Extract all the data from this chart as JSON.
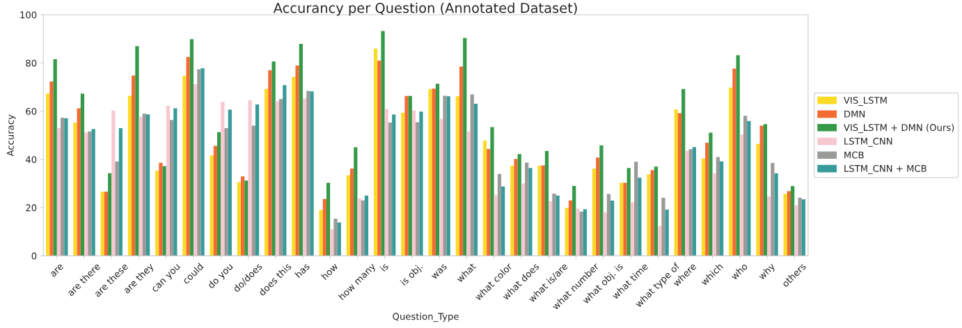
{
  "chart_data": {
    "type": "bar",
    "title": "Accurancy per Question (Annotated Dataset)",
    "xlabel": "Question_Type",
    "ylabel": "Accuracy",
    "categories": [
      "are",
      "are there",
      "are these",
      "are they",
      "can you",
      "could",
      "do you",
      "do/does",
      "does this",
      "has",
      "how",
      "how many",
      "is",
      "is obj.",
      "was",
      "what",
      "what color",
      "what does",
      "what is/are",
      "what number",
      "what obj. is",
      "what time",
      "what type of",
      "where",
      "which",
      "who",
      "why",
      "others"
    ],
    "series": [
      {
        "name": "VIS_LSTM",
        "color": "#fcdb27",
        "values": [
          67.3,
          55.3,
          26.6,
          66.4,
          35.3,
          74.7,
          41.6,
          30.6,
          69.3,
          74.3,
          19,
          33.5,
          86,
          59.4,
          69.2,
          66.2,
          47.8,
          37.4,
          37.4,
          19.9,
          36.2,
          30.3,
          33.8,
          60.8,
          40.4,
          69.8,
          46.5,
          25.7
        ]
      },
      {
        "name": "DMN",
        "color": "#f36b33",
        "values": [
          72.3,
          61.2,
          26.6,
          74.8,
          38.6,
          82.5,
          45.6,
          33,
          77,
          79,
          23.6,
          36.2,
          81,
          66.3,
          69.4,
          78.5,
          44.3,
          40.2,
          37.5,
          23,
          40.8,
          30.3,
          35.6,
          59.2,
          46.9,
          77.7,
          54,
          26.8
        ]
      },
      {
        "name": "VIS_LSTM + DMN (Ours)",
        "color": "#349a47",
        "values": [
          81.6,
          67.3,
          34.3,
          87,
          37.2,
          89.9,
          51.3,
          31.2,
          80.6,
          87.9,
          30.3,
          45,
          93.3,
          66.3,
          71.4,
          90.4,
          53.4,
          42.2,
          43.5,
          29,
          45.8,
          36.4,
          37,
          69.2,
          51.1,
          83.2,
          54.6,
          28.9
        ]
      },
      {
        "name": "LSTM_CNN",
        "color": "#f8c8d1",
        "values": [
          53,
          51.2,
          60.3,
          57.7,
          62.3,
          71.2,
          63.9,
          64.5,
          64.1,
          65.3,
          11,
          23.8,
          61,
          60.3,
          56.8,
          51.5,
          25.2,
          30,
          22.7,
          19.5,
          18,
          22.2,
          12.4,
          43.6,
          34.1,
          50.3,
          24.6,
          21
        ]
      },
      {
        "name": "MCB",
        "color": "#9a9a99",
        "values": [
          57.3,
          51.6,
          39.1,
          59,
          56.4,
          77.4,
          53,
          54,
          65,
          68.4,
          15.4,
          23,
          55.3,
          55.4,
          66.4,
          67,
          34,
          38.7,
          25.8,
          18.3,
          25.7,
          39,
          24.1,
          44.2,
          41,
          58.1,
          38.5,
          24.1
        ]
      },
      {
        "name": "LSTM_CNN + MCB",
        "color": "#379b9a",
        "values": [
          57.1,
          52.6,
          53,
          58.7,
          61.2,
          77.8,
          60.6,
          62.8,
          70.8,
          68.2,
          13.8,
          25,
          58.6,
          59.8,
          66.2,
          63.1,
          28.8,
          36.4,
          25,
          19.3,
          22.9,
          32.4,
          19.2,
          45.1,
          39.2,
          55.9,
          34.3,
          23.4
        ]
      }
    ],
    "ylim": [
      0,
      100
    ],
    "yticks": [
      0,
      20,
      40,
      60,
      80,
      100
    ],
    "grid": false,
    "legend": "right"
  }
}
